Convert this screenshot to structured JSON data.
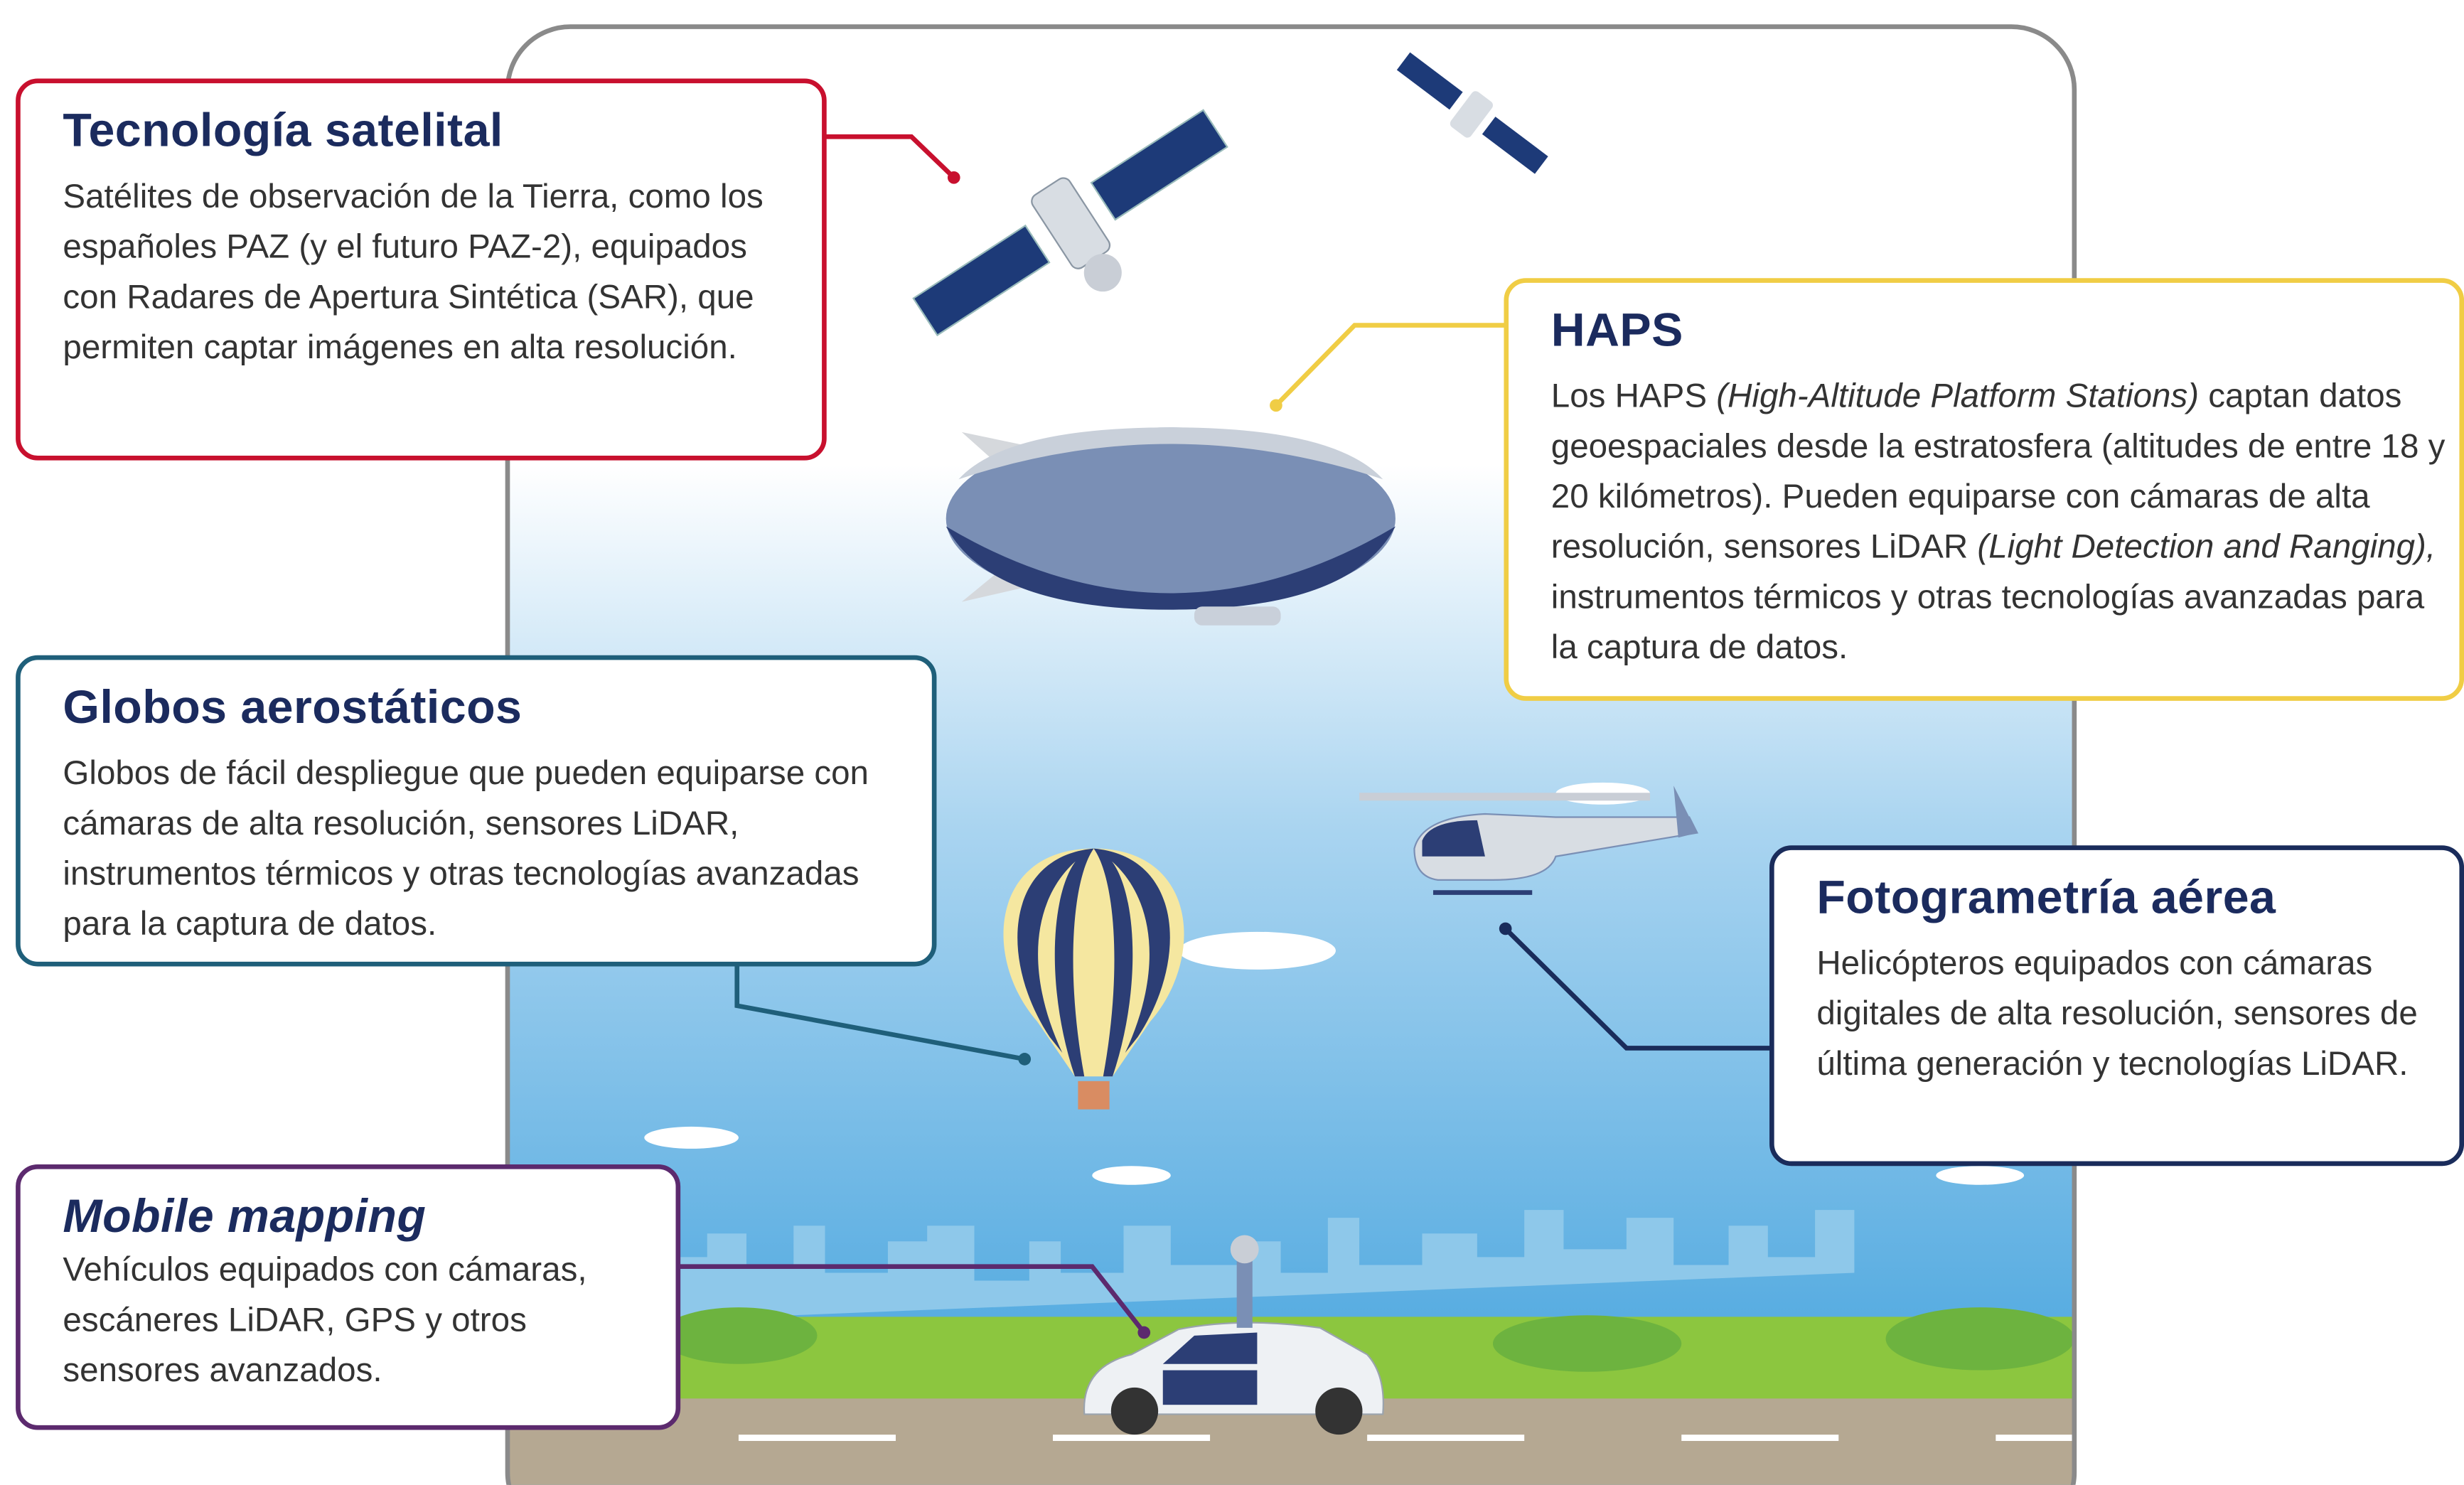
{
  "boxes": {
    "satelital": {
      "title": "Tecnología satelital",
      "text": "Satélites de observación de la Tierra, como los españoles PAZ (y el futuro PAZ-2), equipados con Radares de Apertura Sintética (SAR), que permiten captar imágenes en alta resolución."
    },
    "haps": {
      "title": "HAPS",
      "text": [
        "Los HAPS ",
        "(High-Altitude Platform Stations)",
        " captan datos geoespaciales desde la estratosfera (altitudes de entre 18 y 20 kilómetros). Pueden equiparse con cámaras de alta resolución, sensores LiDAR ",
        "(Light Detection and Ranging),",
        " instrumentos térmicos y otras tecnologías avanzadas para la captura de datos."
      ]
    },
    "globos": {
      "title": "Globos aerostáticos",
      "text": "Globos de fácil despliegue que pueden equiparse con cámaras de alta resolución, sensores LiDAR, instrumentos térmicos y otras tecnologías avanzadas para la captura de datos."
    },
    "fotogrametria": {
      "title": "Fotogrametría aérea",
      "text": "Helicópteros equipados con cámaras digitales de alta resolución, sensores de última generación y tecnologías LiDAR."
    },
    "mobile": {
      "title": "Mobile mapping",
      "text": "Vehículos equipados con cámaras, escáneres LiDAR, GPS y otros sensores avanzados."
    }
  }
}
